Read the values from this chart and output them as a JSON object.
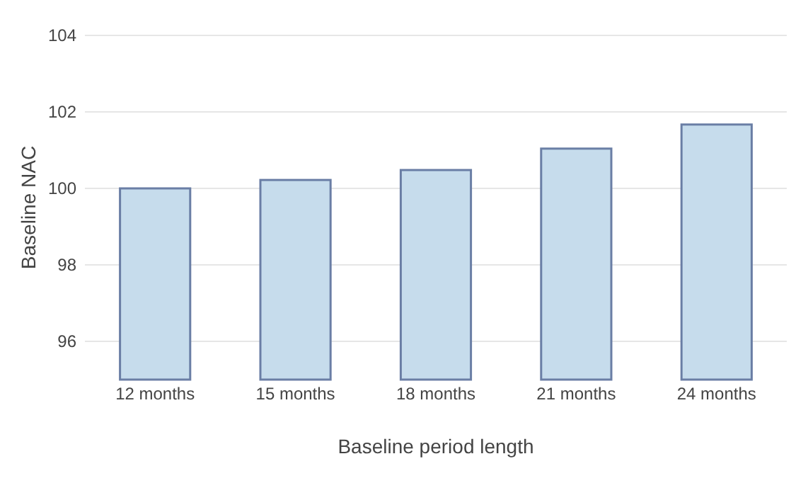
{
  "chart_data": {
    "type": "bar",
    "xlabel": "Baseline period length",
    "ylabel": "Baseline NAC",
    "categories": [
      "12 months",
      "15 months",
      "18 months",
      "21 months",
      "24 months"
    ],
    "values": [
      100.0,
      100.22,
      100.48,
      101.04,
      101.67
    ],
    "color": "#c6dcec",
    "ylim": [
      95,
      104
    ],
    "yticks": [
      96,
      98,
      100,
      102,
      104
    ],
    "grid": "y"
  }
}
